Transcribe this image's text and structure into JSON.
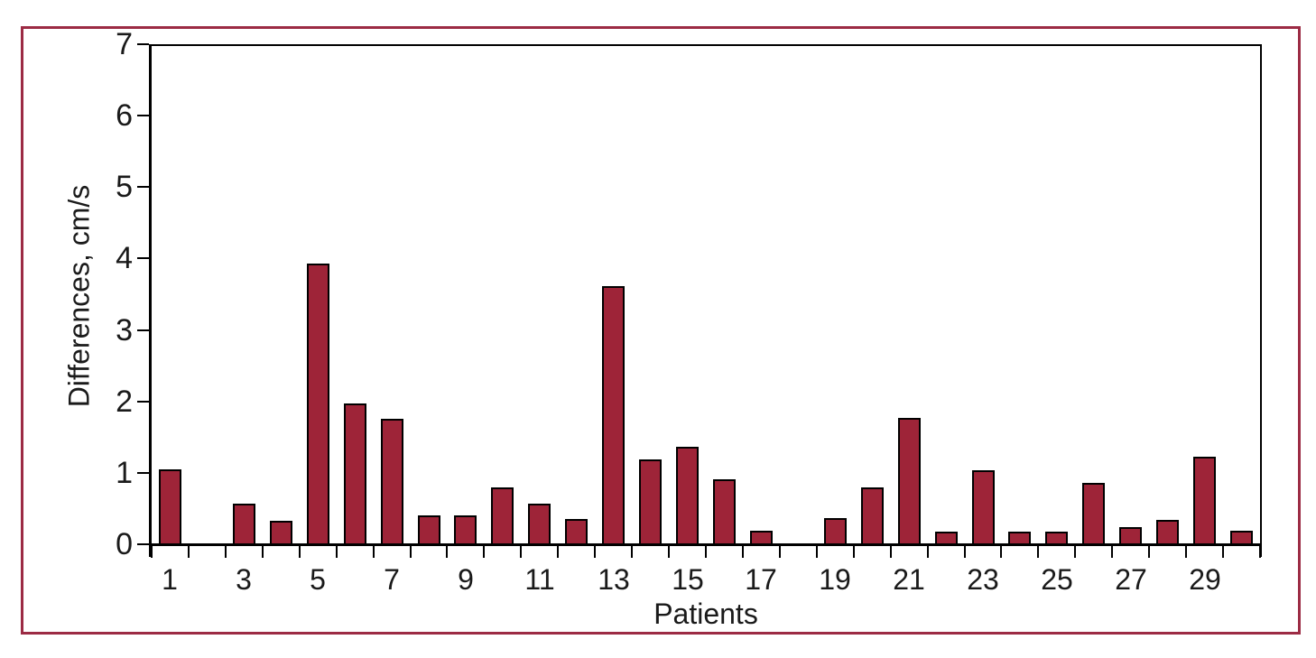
{
  "figure": {
    "frame_color": "#9c2b44",
    "background": "#ffffff"
  },
  "chart_data": {
    "type": "bar",
    "title": "",
    "xlabel": "Patients",
    "ylabel": "Differences, cm/s",
    "categories": [
      1,
      2,
      3,
      4,
      5,
      6,
      7,
      8,
      9,
      10,
      11,
      12,
      13,
      14,
      15,
      16,
      17,
      18,
      19,
      20,
      21,
      22,
      23,
      24,
      25,
      26,
      27,
      28,
      29,
      30
    ],
    "values": [
      1.05,
      0,
      0.57,
      0.33,
      3.93,
      1.97,
      1.76,
      0.4,
      0.4,
      0.79,
      0.57,
      0.35,
      3.62,
      1.19,
      1.37,
      0.91,
      0.19,
      0,
      0.37,
      0.79,
      1.77,
      0.18,
      1.04,
      0.18,
      0.18,
      0.86,
      0.24,
      0.34,
      1.23,
      0.19
    ],
    "ylim": [
      0,
      7
    ],
    "yticks": [
      0,
      1,
      2,
      3,
      4,
      5,
      6,
      7
    ],
    "xticks_labeled": [
      1,
      3,
      5,
      7,
      9,
      11,
      13,
      15,
      17,
      19,
      21,
      23,
      25,
      27,
      29
    ],
    "grid": false,
    "legend": null,
    "bar_color": "#9e2438",
    "bar_border_color": "#000000",
    "axis_color": "#000000"
  }
}
